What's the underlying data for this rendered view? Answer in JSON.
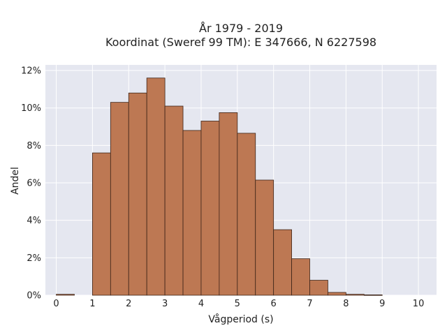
{
  "chart_data": {
    "type": "bar",
    "title": "År 1979 - 2019",
    "subtitle": "Koordinat (Sweref 99 TM): E 347666, N 6227598",
    "xlabel": "Vågperiod (s)",
    "ylabel": "Andel",
    "bin_width": 0.5,
    "bin_starts": [
      0,
      0.5,
      1,
      1.5,
      2,
      2.5,
      3,
      3.5,
      4,
      4.5,
      5,
      5.5,
      6,
      6.5,
      7,
      7.5,
      8,
      8.5,
      9,
      9.5
    ],
    "values": [
      0.05,
      0,
      7.6,
      10.3,
      10.8,
      11.6,
      10.1,
      8.8,
      9.3,
      9.75,
      8.65,
      6.15,
      3.5,
      1.95,
      0.8,
      0.15,
      0.05,
      0.02,
      0,
      0
    ],
    "xlim": [
      -0.3,
      10.5
    ],
    "ylim": [
      0,
      12.3
    ],
    "x_ticks": [
      0,
      1,
      2,
      3,
      4,
      5,
      6,
      7,
      8,
      9,
      10
    ],
    "y_ticks": [
      0,
      2,
      4,
      6,
      8,
      10,
      12
    ],
    "y_tick_labels": [
      "0%",
      "2%",
      "4%",
      "6%",
      "8%",
      "10%",
      "12%"
    ],
    "grid": true,
    "colors": {
      "bar_fill": "#bd7853",
      "bar_edge": "#3d2418",
      "plot_background": "#e5e7f0",
      "grid": "#ffffff"
    }
  }
}
